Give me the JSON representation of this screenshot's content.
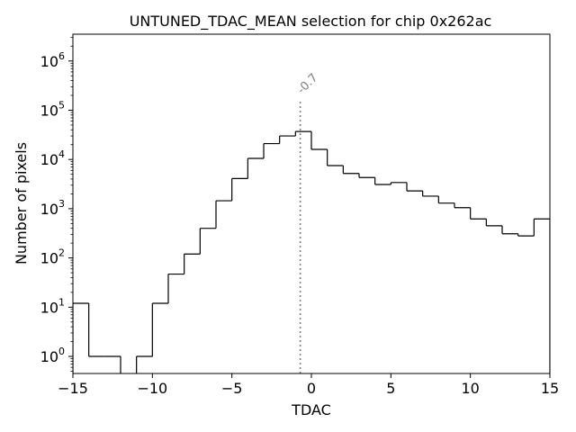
{
  "chart_data": {
    "type": "histogram",
    "title": "UNTUNED_TDAC_MEAN selection for chip 0x262ac",
    "xlabel": "TDAC",
    "ylabel": "Number of pixels",
    "xlim": [
      -15,
      15
    ],
    "ylim": [
      0.45,
      3500000
    ],
    "yscale": "log",
    "grid": false,
    "bin_edges": [
      -15,
      -14,
      -13,
      -12,
      -11,
      -10,
      -9,
      -8,
      -7,
      -6,
      -5,
      -4,
      -3,
      -2,
      -1,
      0,
      1,
      2,
      3,
      4,
      5,
      6,
      7,
      8,
      9,
      10,
      11,
      12,
      13,
      14,
      15
    ],
    "counts": [
      12,
      1,
      1,
      0,
      1,
      12,
      47,
      120,
      400,
      1450,
      4100,
      10500,
      21000,
      30000,
      37000,
      16000,
      7500,
      5200,
      4300,
      3100,
      3400,
      2300,
      1800,
      1300,
      1050,
      620,
      450,
      310,
      280,
      620
    ],
    "x_ticks": [
      -15,
      -10,
      -5,
      0,
      5,
      10,
      15
    ],
    "x_tick_labels": [
      "−15",
      "−10",
      "−5",
      "0",
      "5",
      "10",
      "15"
    ],
    "y_ticks": [
      1,
      10,
      100,
      1000,
      10000,
      100000,
      1000000
    ],
    "y_tick_labels": [
      {
        "base": "10",
        "exp": "0"
      },
      {
        "base": "10",
        "exp": "1"
      },
      {
        "base": "10",
        "exp": "2"
      },
      {
        "base": "10",
        "exp": "3"
      },
      {
        "base": "10",
        "exp": "4"
      },
      {
        "base": "10",
        "exp": "5"
      },
      {
        "base": "10",
        "exp": "6"
      }
    ],
    "vline": {
      "x": -0.7,
      "ymax": 150000,
      "label": "-0.7",
      "color": "#808080"
    },
    "colors": {
      "histogram": "#000000",
      "vline": "#808080"
    }
  }
}
